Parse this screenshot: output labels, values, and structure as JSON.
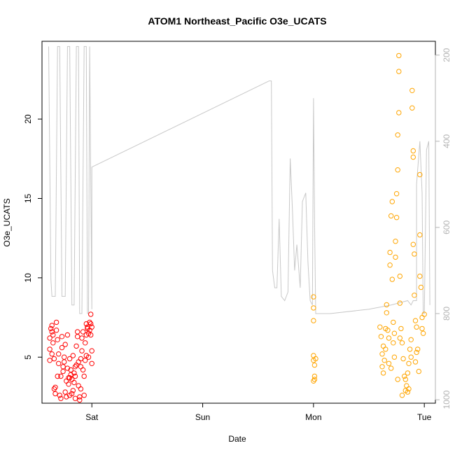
{
  "chart_data": {
    "type": "scatter",
    "title": "ATOM1 Northeast_Pacific O3e_UCATS",
    "xlabel": "Date",
    "ylabel": "O3e_UCATS",
    "x_ticks": [
      {
        "day": 1,
        "label": "Sat"
      },
      {
        "day": 2,
        "label": "Sun"
      },
      {
        "day": 3,
        "label": "Mon"
      },
      {
        "day": 4,
        "label": "Tue"
      }
    ],
    "xlim": [
      0.55,
      4.1
    ],
    "y_ticks": [
      5,
      10,
      15,
      20
    ],
    "ylim": [
      2.1,
      24.9
    ],
    "y2_ticks": [
      200,
      400,
      600,
      800,
      1000
    ],
    "y2lim": [
      1008,
      168
    ],
    "y2_reversed": true,
    "colors": {
      "series_1": "#ff0000",
      "series_2": "#ffa500",
      "pressure": "#c8c8c8",
      "right_axis": "#b3b3b3"
    },
    "pressure_line": [
      [
        0.61,
        180
      ],
      [
        0.63,
        720
      ],
      [
        0.64,
        760
      ],
      [
        0.67,
        760
      ],
      [
        0.69,
        180
      ],
      [
        0.71,
        180
      ],
      [
        0.73,
        760
      ],
      [
        0.76,
        760
      ],
      [
        0.78,
        180
      ],
      [
        0.8,
        180
      ],
      [
        0.82,
        780
      ],
      [
        0.84,
        780
      ],
      [
        0.86,
        180
      ],
      [
        0.88,
        180
      ],
      [
        0.89,
        800
      ],
      [
        0.91,
        800
      ],
      [
        0.93,
        180
      ],
      [
        0.95,
        180
      ],
      [
        0.96,
        800
      ],
      [
        0.97,
        800
      ],
      [
        0.98,
        180
      ],
      [
        0.99,
        500
      ],
      [
        1.0,
        790
      ],
      [
        1.0,
        460
      ],
      [
        2.6,
        260
      ],
      [
        2.62,
        260
      ],
      [
        2.63,
        700
      ],
      [
        2.65,
        740
      ],
      [
        2.67,
        740
      ],
      [
        2.69,
        580
      ],
      [
        2.71,
        760
      ],
      [
        2.74,
        770
      ],
      [
        2.77,
        750
      ],
      [
        2.79,
        440
      ],
      [
        2.81,
        560
      ],
      [
        2.83,
        700
      ],
      [
        2.85,
        640
      ],
      [
        2.88,
        740
      ],
      [
        2.9,
        540
      ],
      [
        2.93,
        520
      ],
      [
        2.95,
        680
      ],
      [
        2.97,
        770
      ],
      [
        2.99,
        780
      ],
      [
        3.0,
        300
      ],
      [
        3.01,
        580
      ],
      [
        3.01,
        590
      ],
      [
        3.02,
        800
      ],
      [
        3.15,
        800
      ],
      [
        3.5,
        790
      ],
      [
        3.7,
        780
      ],
      [
        3.85,
        770
      ],
      [
        3.88,
        780
      ],
      [
        3.9,
        770
      ],
      [
        3.93,
        770
      ],
      [
        3.93,
        500
      ],
      [
        3.96,
        400
      ],
      [
        3.98,
        520
      ],
      [
        3.99,
        800
      ],
      [
        4.0,
        800
      ],
      [
        4.02,
        420
      ],
      [
        4.04,
        400
      ],
      [
        4.05,
        780
      ]
    ],
    "series": [
      {
        "color": "#ff0000",
        "points": [
          [
            0.62,
            6.2
          ],
          [
            0.62,
            5.5
          ],
          [
            0.62,
            4.8
          ],
          [
            0.63,
            6.8
          ],
          [
            0.64,
            6.6
          ],
          [
            0.64,
            7.0
          ],
          [
            0.65,
            5.9
          ],
          [
            0.65,
            6.4
          ],
          [
            0.66,
            4.9
          ],
          [
            0.66,
            3.0
          ],
          [
            0.67,
            2.7
          ],
          [
            0.67,
            3.1
          ],
          [
            0.68,
            6.7
          ],
          [
            0.68,
            7.2
          ],
          [
            0.69,
            6.1
          ],
          [
            0.7,
            5.2
          ],
          [
            0.7,
            4.6
          ],
          [
            0.71,
            2.6
          ],
          [
            0.72,
            2.4
          ],
          [
            0.72,
            3.8
          ],
          [
            0.73,
            5.6
          ],
          [
            0.73,
            6.3
          ],
          [
            0.74,
            4.4
          ],
          [
            0.74,
            4.1
          ],
          [
            0.75,
            5.0
          ],
          [
            0.76,
            5.8
          ],
          [
            0.76,
            2.8
          ],
          [
            0.77,
            3.5
          ],
          [
            0.77,
            2.5
          ],
          [
            0.78,
            4.3
          ],
          [
            0.78,
            6.4
          ],
          [
            0.79,
            3.7
          ],
          [
            0.79,
            3.3
          ],
          [
            0.8,
            2.6
          ],
          [
            0.8,
            4.9
          ],
          [
            0.81,
            3.9
          ],
          [
            0.81,
            4.2
          ],
          [
            0.82,
            3.6
          ],
          [
            0.82,
            2.7
          ],
          [
            0.83,
            5.1
          ],
          [
            0.83,
            2.9
          ],
          [
            0.84,
            3.4
          ],
          [
            0.84,
            4.0
          ],
          [
            0.85,
            2.4
          ],
          [
            0.85,
            3.8
          ],
          [
            0.86,
            4.5
          ],
          [
            0.86,
            5.7
          ],
          [
            0.87,
            6.6
          ],
          [
            0.87,
            6.3
          ],
          [
            0.88,
            4.7
          ],
          [
            0.88,
            3.2
          ],
          [
            0.89,
            2.3
          ],
          [
            0.89,
            2.5
          ],
          [
            0.9,
            3.0
          ],
          [
            0.9,
            4.9
          ],
          [
            0.91,
            5.4
          ],
          [
            0.91,
            6.2
          ],
          [
            0.92,
            6.6
          ],
          [
            0.92,
            4.2
          ],
          [
            0.93,
            2.6
          ],
          [
            0.93,
            3.8
          ],
          [
            0.94,
            4.8
          ],
          [
            0.94,
            5.9
          ],
          [
            0.95,
            6.4
          ],
          [
            0.95,
            7.1
          ],
          [
            0.96,
            6.8
          ],
          [
            0.96,
            6.9
          ],
          [
            0.97,
            5.0
          ],
          [
            0.97,
            6.5
          ],
          [
            0.98,
            7.2
          ],
          [
            0.98,
            6.7
          ],
          [
            0.99,
            6.4
          ],
          [
            0.99,
            7.1
          ],
          [
            0.99,
            7.7
          ],
          [
            1.0,
            5.4
          ],
          [
            1.0,
            4.6
          ],
          [
            1.0,
            6.9
          ],
          [
            0.64,
            5.2
          ],
          [
            0.69,
            3.8
          ],
          [
            0.75,
            4.7
          ],
          [
            0.8,
            3.7
          ],
          [
            0.85,
            4.4
          ],
          [
            0.9,
            4.4
          ],
          [
            0.95,
            5.1
          ]
        ]
      },
      {
        "color": "#ffa500",
        "points": [
          [
            3.0,
            8.8
          ],
          [
            3.0,
            8.1
          ],
          [
            3.0,
            7.3
          ],
          [
            3.0,
            5.1
          ],
          [
            3.0,
            4.8
          ],
          [
            3.01,
            3.8
          ],
          [
            3.01,
            3.6
          ],
          [
            3.01,
            4.5
          ],
          [
            3.0,
            3.5
          ],
          [
            3.02,
            4.9
          ],
          [
            3.6,
            6.9
          ],
          [
            3.61,
            6.3
          ],
          [
            3.62,
            5.2
          ],
          [
            3.62,
            4.4
          ],
          [
            3.63,
            4.0
          ],
          [
            3.64,
            4.8
          ],
          [
            3.65,
            5.5
          ],
          [
            3.65,
            6.8
          ],
          [
            3.66,
            8.3
          ],
          [
            3.66,
            7.8
          ],
          [
            3.67,
            6.7
          ],
          [
            3.68,
            6.2
          ],
          [
            3.69,
            10.8
          ],
          [
            3.69,
            11.6
          ],
          [
            3.7,
            13.9
          ],
          [
            3.71,
            14.8
          ],
          [
            3.71,
            9.9
          ],
          [
            3.72,
            7.2
          ],
          [
            3.72,
            5.9
          ],
          [
            3.73,
            5.0
          ],
          [
            3.74,
            11.3
          ],
          [
            3.74,
            12.3
          ],
          [
            3.75,
            13.8
          ],
          [
            3.75,
            15.3
          ],
          [
            3.76,
            16.8
          ],
          [
            3.76,
            19.0
          ],
          [
            3.77,
            20.4
          ],
          [
            3.77,
            23.0
          ],
          [
            3.77,
            24.0
          ],
          [
            3.78,
            10.1
          ],
          [
            3.78,
            8.4
          ],
          [
            3.79,
            6.8
          ],
          [
            3.8,
            5.9
          ],
          [
            3.81,
            4.9
          ],
          [
            3.82,
            3.8
          ],
          [
            3.83,
            2.9
          ],
          [
            3.84,
            3.2
          ],
          [
            3.85,
            2.8
          ],
          [
            3.86,
            4.6
          ],
          [
            3.87,
            5.5
          ],
          [
            3.88,
            6.1
          ],
          [
            3.89,
            21.8
          ],
          [
            3.89,
            20.7
          ],
          [
            3.9,
            18.0
          ],
          [
            3.9,
            17.6
          ],
          [
            3.9,
            12.1
          ],
          [
            3.91,
            11.5
          ],
          [
            3.91,
            8.9
          ],
          [
            3.92,
            7.3
          ],
          [
            3.93,
            6.9
          ],
          [
            3.94,
            5.5
          ],
          [
            3.95,
            4.1
          ],
          [
            3.96,
            16.5
          ],
          [
            3.96,
            12.7
          ],
          [
            3.96,
            10.1
          ],
          [
            3.97,
            9.4
          ],
          [
            3.98,
            7.5
          ],
          [
            3.99,
            6.5
          ],
          [
            4.0,
            7.7
          ],
          [
            3.63,
            5.7
          ],
          [
            3.68,
            4.6
          ],
          [
            3.73,
            6.5
          ],
          [
            3.78,
            6.2
          ],
          [
            3.83,
            3.6
          ],
          [
            3.88,
            5.0
          ],
          [
            3.93,
            5.3
          ],
          [
            3.98,
            6.8
          ],
          [
            3.85,
            4.0
          ],
          [
            3.8,
            2.6
          ],
          [
            3.86,
            3.0
          ],
          [
            3.7,
            4.3
          ],
          [
            3.76,
            3.6
          ],
          [
            3.92,
            4.7
          ]
        ]
      }
    ]
  }
}
